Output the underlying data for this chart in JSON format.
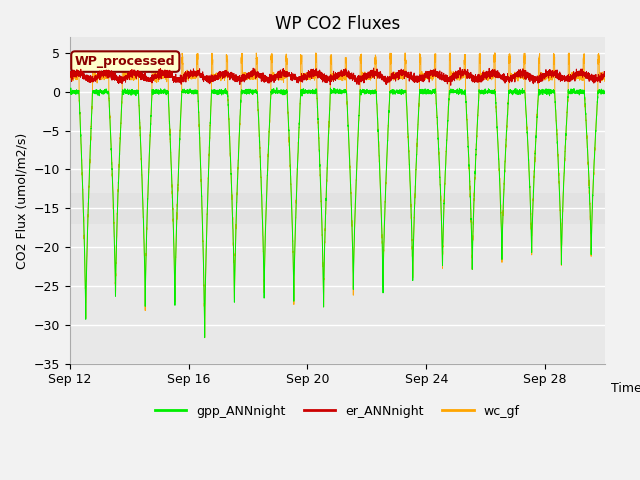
{
  "title": "WP CO2 Fluxes",
  "xlabel": "Time",
  "ylabel": "CO2 Flux (umol/m2/s)",
  "ylim": [
    -35,
    7
  ],
  "yticks": [
    -35,
    -30,
    -25,
    -20,
    -15,
    -10,
    -5,
    0,
    5
  ],
  "n_days": 18,
  "gpp_color": "#00EE00",
  "er_color": "#CC0000",
  "wc_color": "#FFA500",
  "fig_bg_color": "#F2F2F2",
  "plot_bg_color": "#E8E8E8",
  "legend_label": "WP_processed",
  "legend_bg": "#FFFFCC",
  "legend_border": "#8B0000",
  "line_labels": [
    "gpp_ANNnight",
    "er_ANNnight",
    "wc_gf"
  ],
  "xtick_labels": [
    "Sep 12",
    "Sep 16",
    "Sep 20",
    "Sep 24",
    "Sep 28"
  ],
  "xtick_positions": [
    0,
    4,
    8,
    12,
    16
  ],
  "title_fontsize": 12,
  "axis_label_fontsize": 9,
  "tick_fontsize": 9,
  "legend_fontsize": 9,
  "grid_color": "#CACACA",
  "band_color": "#DEDEDE"
}
